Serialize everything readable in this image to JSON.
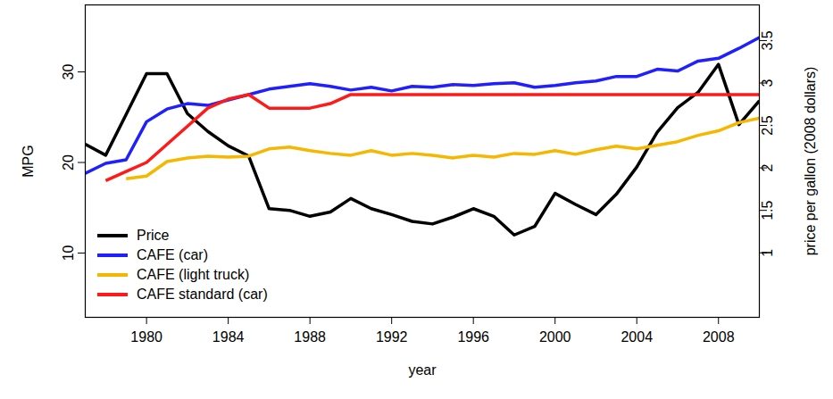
{
  "chart_data": {
    "type": "line",
    "x_label": "year",
    "y_label": "MPG",
    "y2_label": "price per gallon (2008 dollars)",
    "x": [
      1977,
      1978,
      1979,
      1980,
      1981,
      1982,
      1983,
      1984,
      1985,
      1986,
      1987,
      1988,
      1989,
      1990,
      1991,
      1992,
      1993,
      1994,
      1995,
      1996,
      1997,
      1998,
      1999,
      2000,
      2001,
      2002,
      2003,
      2004,
      2005,
      2006,
      2007,
      2008,
      2009,
      2010
    ],
    "xlim": [
      1977,
      2010
    ],
    "xticks": [
      1980,
      1984,
      1988,
      1992,
      1996,
      2000,
      2004,
      2008
    ],
    "ylim": [
      2.9,
      37.4
    ],
    "yticks": [
      10,
      20,
      30
    ],
    "y2lim": [
      0.24,
      3.92
    ],
    "y2ticks": [
      1,
      1.5,
      2,
      2.5,
      3,
      3.5
    ],
    "legend": "bottom-left",
    "grid": false,
    "series": [
      {
        "name": "Price",
        "color": "#000000",
        "axis": "y2",
        "values": [
          2.28,
          2.15,
          2.63,
          3.11,
          3.11,
          2.64,
          2.43,
          2.26,
          2.14,
          1.52,
          1.5,
          1.43,
          1.48,
          1.64,
          1.52,
          1.45,
          1.37,
          1.34,
          1.42,
          1.52,
          1.43,
          1.21,
          1.31,
          1.7,
          1.57,
          1.45,
          1.69,
          2.01,
          2.42,
          2.71,
          2.89,
          3.22,
          2.51,
          2.79
        ]
      },
      {
        "name": "CAFE (car)",
        "color": "#1f1fff",
        "values": [
          18.8,
          19.9,
          20.3,
          24.5,
          25.9,
          26.5,
          26.3,
          26.9,
          27.5,
          28.1,
          28.4,
          28.7,
          28.4,
          28.0,
          28.3,
          27.9,
          28.4,
          28.3,
          28.6,
          28.5,
          28.7,
          28.8,
          28.3,
          28.5,
          28.8,
          29.0,
          29.5,
          29.5,
          30.3,
          30.1,
          31.2,
          31.5,
          32.6,
          33.8
        ]
      },
      {
        "name": "CAFE (light truck)",
        "color": "#f5b700",
        "values": [
          null,
          null,
          18.2,
          18.5,
          20.1,
          20.5,
          20.7,
          20.6,
          20.7,
          21.5,
          21.7,
          21.3,
          21.0,
          20.8,
          21.3,
          20.8,
          21.0,
          20.8,
          20.5,
          20.8,
          20.6,
          21.0,
          20.9,
          21.3,
          20.9,
          21.4,
          21.8,
          21.5,
          21.9,
          22.3,
          23.0,
          23.5,
          24.4,
          24.9
        ]
      },
      {
        "name": "CAFE standard (car)",
        "color": "#ff1a1a",
        "values": [
          null,
          18.0,
          19.0,
          20.0,
          22.0,
          24.0,
          26.0,
          27.0,
          27.5,
          26.0,
          26.0,
          26.0,
          26.5,
          27.5,
          27.5,
          27.5,
          27.5,
          27.5,
          27.5,
          27.5,
          27.5,
          27.5,
          27.5,
          27.5,
          27.5,
          27.5,
          27.5,
          27.5,
          27.5,
          27.5,
          27.5,
          27.5,
          27.5,
          27.5
        ]
      }
    ]
  }
}
